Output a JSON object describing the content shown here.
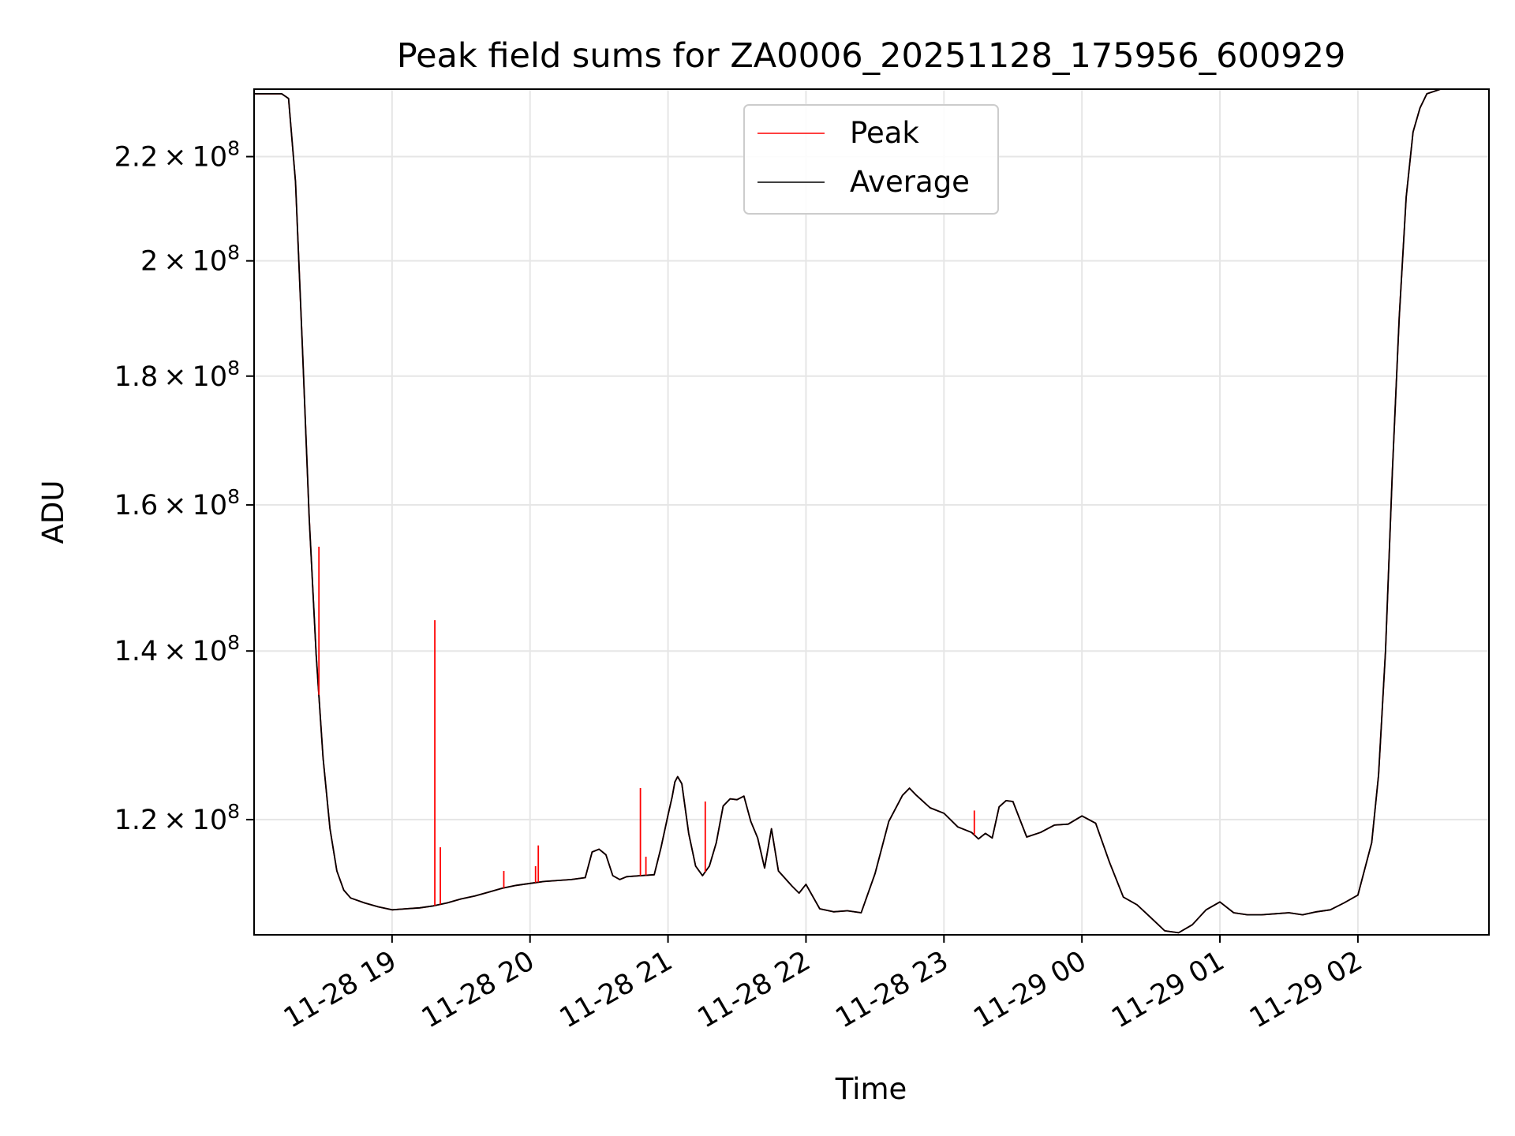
{
  "chart_data": {
    "type": "line",
    "title": "Peak field sums for ZA0006_20251128_175956_600929",
    "xlabel": "Time",
    "ylabel": "ADU",
    "y_scale": "log",
    "xlim": [
      18.0,
      26.95
    ],
    "ylim": [
      108000000,
      234000000
    ],
    "grid": true,
    "legend_position": "upper center",
    "x_ticks": [
      {
        "x": 19,
        "label": "11-28 19"
      },
      {
        "x": 20,
        "label": "11-28 20"
      },
      {
        "x": 21,
        "label": "11-28 21"
      },
      {
        "x": 22,
        "label": "11-28 22"
      },
      {
        "x": 23,
        "label": "11-28 23"
      },
      {
        "x": 24,
        "label": "11-29 00"
      },
      {
        "x": 25,
        "label": "11-29 01"
      },
      {
        "x": 26,
        "label": "11-29 02"
      }
    ],
    "y_ticks": [
      {
        "y": 120000000,
        "base": "1.2",
        "exp": "8"
      },
      {
        "y": 140000000,
        "base": "1.4",
        "exp": "8"
      },
      {
        "y": 160000000,
        "base": "1.6",
        "exp": "8"
      },
      {
        "y": 180000000,
        "base": "1.8",
        "exp": "8"
      },
      {
        "y": 200000000,
        "base": "2",
        "exp": "8"
      },
      {
        "y": 220000000,
        "base": "2.2",
        "exp": "8"
      }
    ],
    "times_symbol": "×",
    "exp_base": "10",
    "series": [
      {
        "name": "Average",
        "color": "#000000",
        "x": [
          18.0,
          18.2,
          18.25,
          18.3,
          18.35,
          18.4,
          18.45,
          18.5,
          18.55,
          18.6,
          18.65,
          18.7,
          18.8,
          18.9,
          19.0,
          19.1,
          19.2,
          19.3,
          19.4,
          19.5,
          19.6,
          19.7,
          19.8,
          19.9,
          20.0,
          20.1,
          20.2,
          20.3,
          20.4,
          20.45,
          20.5,
          20.55,
          20.6,
          20.65,
          20.7,
          20.8,
          20.9,
          20.95,
          21.0,
          21.03,
          21.05,
          21.07,
          21.1,
          21.15,
          21.2,
          21.25,
          21.3,
          21.35,
          21.4,
          21.45,
          21.5,
          21.55,
          21.6,
          21.65,
          21.7,
          21.75,
          21.8,
          21.9,
          21.95,
          22.0,
          22.1,
          22.2,
          22.3,
          22.4,
          22.5,
          22.6,
          22.7,
          22.75,
          22.8,
          22.9,
          23.0,
          23.1,
          23.2,
          23.25,
          23.3,
          23.35,
          23.4,
          23.45,
          23.5,
          23.6,
          23.7,
          23.8,
          23.9,
          24.0,
          24.1,
          24.2,
          24.3,
          24.4,
          24.5,
          24.6,
          24.7,
          24.8,
          24.9,
          25.0,
          25.1,
          25.2,
          25.3,
          25.4,
          25.5,
          25.6,
          25.7,
          25.8,
          25.9,
          26.0,
          26.1,
          26.15,
          26.2,
          26.25,
          26.3,
          26.35,
          26.4,
          26.45,
          26.5,
          26.6,
          26.65
        ],
        "y": [
          233000000,
          233000000,
          232000000,
          215000000,
          185000000,
          158000000,
          139500000,
          127000000,
          119000000,
          114500000,
          112500000,
          111700000,
          111200000,
          110800000,
          110500000,
          110600000,
          110700000,
          110900000,
          111200000,
          111600000,
          111900000,
          112300000,
          112700000,
          113000000,
          113200000,
          113400000,
          113500000,
          113600000,
          113800000,
          116500000,
          116800000,
          116200000,
          114000000,
          113600000,
          113900000,
          114000000,
          114100000,
          117000000,
          120500000,
          122500000,
          124200000,
          124800000,
          124000000,
          118500000,
          115000000,
          114000000,
          115000000,
          117500000,
          121500000,
          122300000,
          122200000,
          122600000,
          119800000,
          118000000,
          114800000,
          119000000,
          114500000,
          112900000,
          112200000,
          113100000,
          110600000,
          110300000,
          110400000,
          110200000,
          114200000,
          119800000,
          122700000,
          123500000,
          122700000,
          121300000,
          120700000,
          119200000,
          118600000,
          117900000,
          118500000,
          118000000,
          121400000,
          122100000,
          122000000,
          118100000,
          118600000,
          119400000,
          119500000,
          120400000,
          119600000,
          115400000,
          111800000,
          111000000,
          109700000,
          108400000,
          108200000,
          109000000,
          110500000,
          111300000,
          110200000,
          110000000,
          110000000,
          110100000,
          110200000,
          110000000,
          110300000,
          110500000,
          111200000,
          112000000,
          117500000,
          125000000,
          140000000,
          165000000,
          190000000,
          212000000,
          225000000,
          230000000,
          233000000,
          234000000,
          234000000
        ]
      },
      {
        "name": "Peak",
        "color": "#ff0000",
        "x": [
          18.0,
          18.2,
          18.25,
          18.3,
          18.35,
          18.4,
          18.45,
          18.5,
          18.55,
          18.6,
          18.65,
          18.7,
          18.8,
          18.9,
          19.0,
          19.1,
          19.2,
          19.3,
          19.4,
          19.5,
          19.6,
          19.7,
          19.8,
          19.9,
          20.0,
          20.1,
          20.2,
          20.3,
          20.4,
          20.45,
          20.5,
          20.55,
          20.6,
          20.65,
          20.7,
          20.8,
          20.9,
          20.95,
          21.0,
          21.03,
          21.05,
          21.07,
          21.1,
          21.15,
          21.2,
          21.25,
          21.3,
          21.35,
          21.4,
          21.45,
          21.5,
          21.55,
          21.6,
          21.65,
          21.7,
          21.75,
          21.8,
          21.9,
          21.95,
          22.0,
          22.1,
          22.2,
          22.3,
          22.4,
          22.5,
          22.6,
          22.7,
          22.75,
          22.8,
          22.9,
          23.0,
          23.1,
          23.2,
          23.25,
          23.3,
          23.35,
          23.4,
          23.45,
          23.5,
          23.6,
          23.7,
          23.8,
          23.9,
          24.0,
          24.1,
          24.2,
          24.3,
          24.4,
          24.5,
          24.6,
          24.7,
          24.8,
          24.9,
          25.0,
          25.1,
          25.2,
          25.3,
          25.4,
          25.5,
          25.6,
          25.7,
          25.8,
          25.9,
          26.0,
          26.1,
          26.15,
          26.2,
          26.25,
          26.3,
          26.35,
          26.4,
          26.45,
          26.5,
          26.6,
          26.65
        ],
        "y": [
          233000000,
          233000000,
          232000000,
          215000000,
          185000000,
          158000000,
          139500000,
          127000000,
          119000000,
          114500000,
          112500000,
          111700000,
          111200000,
          110800000,
          110500000,
          110600000,
          110700000,
          110900000,
          111200000,
          111600000,
          111900000,
          112300000,
          112700000,
          113000000,
          113200000,
          113400000,
          113500000,
          113600000,
          113800000,
          116500000,
          116800000,
          116200000,
          114000000,
          113600000,
          113900000,
          114000000,
          114100000,
          117000000,
          120500000,
          122500000,
          124200000,
          124800000,
          124000000,
          118500000,
          115000000,
          114000000,
          115000000,
          117500000,
          121500000,
          122300000,
          122200000,
          122600000,
          119800000,
          118000000,
          114800000,
          119000000,
          114500000,
          112900000,
          112200000,
          113100000,
          110600000,
          110300000,
          110400000,
          110200000,
          114200000,
          119800000,
          122700000,
          123500000,
          122700000,
          121300000,
          120700000,
          119200000,
          118600000,
          117900000,
          118500000,
          118000000,
          121400000,
          122100000,
          122000000,
          118100000,
          118600000,
          119400000,
          119500000,
          120400000,
          119600000,
          115400000,
          111800000,
          111000000,
          109700000,
          108400000,
          108200000,
          109000000,
          110500000,
          111300000,
          110200000,
          110000000,
          110000000,
          110100000,
          110200000,
          110000000,
          110300000,
          110500000,
          111200000,
          112000000,
          117500000,
          125000000,
          140000000,
          165000000,
          190000000,
          212000000,
          225000000,
          230000000,
          233000000,
          234000000,
          234000000
        ],
        "spikes": [
          {
            "x": 18.47,
            "y": 154000000
          },
          {
            "x": 19.31,
            "y": 144000000
          },
          {
            "x": 19.35,
            "y": 117000000
          },
          {
            "x": 19.81,
            "y": 114500000
          },
          {
            "x": 20.04,
            "y": 115000000
          },
          {
            "x": 20.06,
            "y": 117200000
          },
          {
            "x": 20.8,
            "y": 123500000
          },
          {
            "x": 20.84,
            "y": 116000000
          },
          {
            "x": 21.27,
            "y": 122000000
          },
          {
            "x": 23.22,
            "y": 121000000
          }
        ]
      }
    ]
  }
}
